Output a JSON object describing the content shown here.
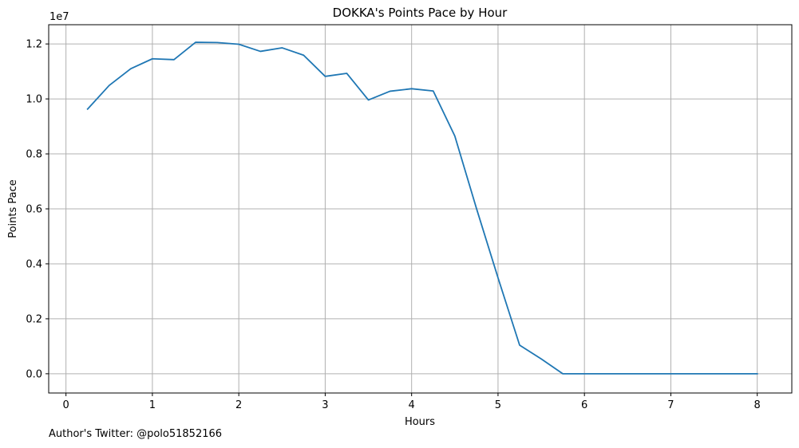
{
  "footnote": "Author's Twitter: @polo51852166",
  "chart_data": {
    "type": "line",
    "title": "DOKKA's Points Pace by Hour",
    "xlabel": "Hours",
    "ylabel": "Points Pace",
    "y_offset_label": "1e7",
    "xlim": [
      -0.2,
      8.4
    ],
    "ylim": [
      -0.07,
      1.27
    ],
    "xticks": [
      0,
      1,
      2,
      3,
      4,
      5,
      6,
      7,
      8
    ],
    "xtick_labels": [
      "0",
      "1",
      "2",
      "3",
      "4",
      "5",
      "6",
      "7",
      "8"
    ],
    "yticks": [
      0.0,
      0.2,
      0.4,
      0.6,
      0.8,
      1.0,
      1.2
    ],
    "ytick_labels": [
      "0.0",
      "0.2",
      "0.4",
      "0.6",
      "0.8",
      "1.0",
      "1.2"
    ],
    "grid": true,
    "line_color": "#1f77b4",
    "grid_color": "#b0b0b0",
    "series": [
      {
        "x": [
          0.25,
          0.5,
          0.75,
          1.0,
          1.25,
          1.5,
          1.75,
          2.0,
          2.25,
          2.5,
          2.75,
          3.0,
          3.25,
          3.5,
          3.75,
          4.0,
          4.25,
          4.5,
          4.75,
          5.0,
          5.25,
          5.5,
          5.75,
          6.0,
          6.25,
          6.5,
          6.75,
          7.0,
          7.25,
          7.5,
          7.75,
          8.0
        ],
        "values": [
          0.963,
          1.049,
          1.11,
          1.146,
          1.143,
          1.206,
          1.205,
          1.199,
          1.173,
          1.186,
          1.159,
          1.082,
          1.093,
          0.996,
          1.028,
          1.037,
          1.029,
          0.865,
          0.602,
          0.349,
          0.104,
          0.054,
          0.0,
          0.0,
          0.0,
          0.0,
          0.0,
          0.0,
          0.0,
          0.0,
          0.0,
          0.0
        ]
      }
    ]
  }
}
